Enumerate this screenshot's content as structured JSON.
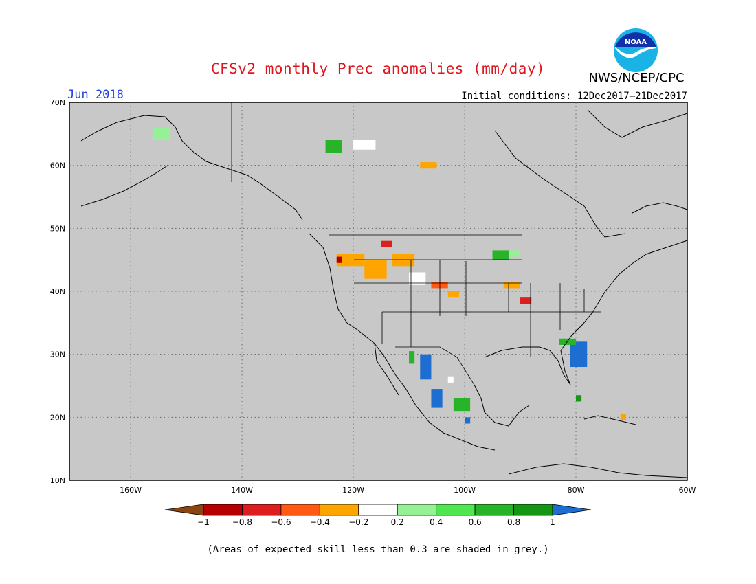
{
  "header": {
    "title": "CFSv2 monthly Prec anomalies (mm/day)",
    "agency": "NWS/NCEP/CPC",
    "logo_text": "NOAA",
    "valid_month": "Jun 2018",
    "initial_conditions": "Initial conditions: 12Dec2017–21Dec2017"
  },
  "map": {
    "projection": "cylindrical",
    "lon_range": [
      -171,
      -60
    ],
    "lat_range": [
      10,
      70
    ],
    "background_color": "#c8c8c8",
    "latitude_labels": [
      "70N",
      "60N",
      "50N",
      "40N",
      "30N",
      "20N",
      "10N"
    ],
    "latitude_values": [
      70,
      60,
      50,
      40,
      30,
      20,
      10
    ],
    "longitude_labels": [
      "160W",
      "140W",
      "120W",
      "100W",
      "80W",
      "60W"
    ],
    "longitude_values": [
      -160,
      -140,
      -120,
      -100,
      -80,
      -60
    ],
    "grid": "dotted"
  },
  "colorbar": {
    "labels": [
      "−1",
      "−0.8",
      "−0.6",
      "−0.4",
      "−0.2",
      "0.2",
      "0.4",
      "0.6",
      "0.8",
      "1"
    ],
    "colors": [
      "#8b4513",
      "#b40000",
      "#dc1e1e",
      "#ff5a14",
      "#ffa500",
      "#ffffff",
      "#96f096",
      "#50e650",
      "#28b428",
      "#149614",
      "#1e6ed2"
    ]
  },
  "anomalies": [
    {
      "lon": -125,
      "lat": 62,
      "w": 3,
      "h": 2,
      "color": "#28b428"
    },
    {
      "lon": -120,
      "lat": 62.5,
      "w": 4,
      "h": 1.5,
      "color": "#ffffff"
    },
    {
      "lon": -156,
      "lat": 64,
      "w": 3,
      "h": 2,
      "color": "#96f096"
    },
    {
      "lon": -108,
      "lat": 59.5,
      "w": 3,
      "h": 1,
      "color": "#ffa500"
    },
    {
      "lon": -123,
      "lat": 44,
      "w": 5,
      "h": 2,
      "color": "#ffa500"
    },
    {
      "lon": -123,
      "lat": 44.5,
      "w": 1,
      "h": 1,
      "color": "#b40000"
    },
    {
      "lon": -118,
      "lat": 42,
      "w": 4,
      "h": 3,
      "color": "#ffa500"
    },
    {
      "lon": -115,
      "lat": 47,
      "w": 2,
      "h": 1,
      "color": "#dc1e1e"
    },
    {
      "lon": -113,
      "lat": 44,
      "w": 4,
      "h": 2,
      "color": "#ffa500"
    },
    {
      "lon": -110,
      "lat": 41,
      "w": 3,
      "h": 2,
      "color": "#ffffff"
    },
    {
      "lon": -106,
      "lat": 40.5,
      "w": 3,
      "h": 1,
      "color": "#ff5a14"
    },
    {
      "lon": -103,
      "lat": 39,
      "w": 2,
      "h": 1,
      "color": "#ffa500"
    },
    {
      "lon": -95,
      "lat": 45,
      "w": 3,
      "h": 1.5,
      "color": "#28b428"
    },
    {
      "lon": -92,
      "lat": 45.5,
      "w": 2,
      "h": 1,
      "color": "#96f096"
    },
    {
      "lon": -90,
      "lat": 38,
      "w": 2,
      "h": 1,
      "color": "#dc1e1e"
    },
    {
      "lon": -93,
      "lat": 40.5,
      "w": 3,
      "h": 1,
      "color": "#ffa500"
    },
    {
      "lon": -81,
      "lat": 28,
      "w": 3,
      "h": 4,
      "color": "#1e6ed2"
    },
    {
      "lon": -83,
      "lat": 31.5,
      "w": 3,
      "h": 1,
      "color": "#28b428"
    },
    {
      "lon": -108,
      "lat": 26,
      "w": 2,
      "h": 4,
      "color": "#1e6ed2"
    },
    {
      "lon": -106,
      "lat": 21.5,
      "w": 2,
      "h": 3,
      "color": "#1e6ed2"
    },
    {
      "lon": -110,
      "lat": 28.5,
      "w": 1,
      "h": 2,
      "color": "#28b428"
    },
    {
      "lon": -102,
      "lat": 21,
      "w": 3,
      "h": 2,
      "color": "#28b428"
    },
    {
      "lon": -100,
      "lat": 19,
      "w": 1,
      "h": 1,
      "color": "#1e6ed2"
    },
    {
      "lon": -103,
      "lat": 25.5,
      "w": 1,
      "h": 1,
      "color": "#ffffff"
    },
    {
      "lon": -80,
      "lat": 22.5,
      "w": 1,
      "h": 1,
      "color": "#149614"
    },
    {
      "lon": -72,
      "lat": 19.5,
      "w": 1,
      "h": 1,
      "color": "#ffa500"
    }
  ],
  "footnote": "(Areas of expected skill less than 0.3 are shaded in grey.)"
}
